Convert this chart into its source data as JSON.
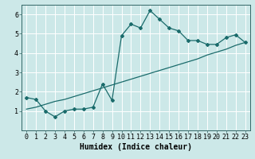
{
  "title": "",
  "xlabel": "Humidex (Indice chaleur)",
  "background_color": "#cce8e8",
  "line_color": "#1a6b6b",
  "grid_color": "#b0d4d4",
  "xlim": [
    -0.5,
    23.5
  ],
  "ylim": [
    0,
    6.5
  ],
  "xticks": [
    0,
    1,
    2,
    3,
    4,
    5,
    6,
    7,
    8,
    9,
    10,
    11,
    12,
    13,
    14,
    15,
    16,
    17,
    18,
    19,
    20,
    21,
    22,
    23
  ],
  "yticks": [
    1,
    2,
    3,
    4,
    5,
    6
  ],
  "line1_x": [
    0,
    1,
    2,
    3,
    4,
    5,
    6,
    7,
    8,
    9,
    10,
    11,
    12,
    13,
    14,
    15,
    16,
    17,
    18,
    19,
    20,
    21,
    22,
    23
  ],
  "line1_y": [
    1.7,
    1.6,
    1.0,
    0.7,
    1.0,
    1.1,
    1.1,
    1.2,
    2.4,
    1.55,
    4.9,
    5.5,
    5.3,
    6.2,
    5.75,
    5.3,
    5.15,
    4.65,
    4.65,
    4.45,
    4.45,
    4.8,
    4.95,
    4.55
  ],
  "line2_x": [
    0,
    1,
    2,
    3,
    4,
    5,
    6,
    7,
    8,
    9,
    10,
    11,
    12,
    13,
    14,
    15,
    16,
    17,
    18,
    19,
    20,
    21,
    22,
    23
  ],
  "line2_y": [
    1.1,
    1.2,
    1.35,
    1.5,
    1.6,
    1.75,
    1.9,
    2.05,
    2.2,
    2.35,
    2.5,
    2.65,
    2.8,
    2.95,
    3.1,
    3.25,
    3.4,
    3.55,
    3.7,
    3.9,
    4.05,
    4.2,
    4.4,
    4.55
  ],
  "marker": "D",
  "markersize": 2.0,
  "linewidth": 0.9,
  "xlabel_fontsize": 7,
  "tick_fontsize": 6
}
